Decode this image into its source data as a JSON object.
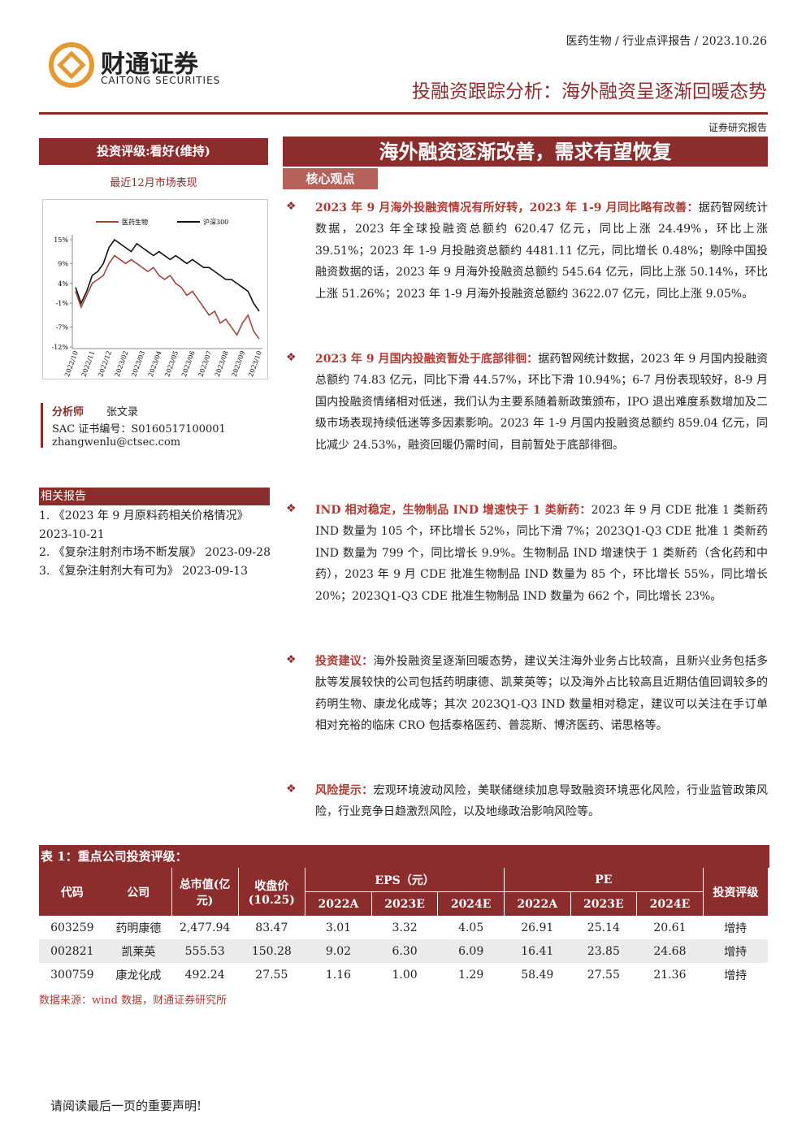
{
  "header": {
    "breadcrumb": "医药生物 / 行业点评报告 / 2023.10.26",
    "company_cn": "财通证券",
    "company_en": "CAITONG SECURITIES",
    "title": "投融资跟踪分析：海外融资呈逐渐回暖态势",
    "label": "证券研究报告"
  },
  "left": {
    "rating": "投资评级:看好(维持)",
    "market_title": "最近12月市场表现",
    "analyst": {
      "role": "分析师",
      "name": "张文录",
      "sac": "SAC 证书编号：S0160517100001",
      "email": "zhangwenlu@ctsec.com"
    },
    "related": {
      "title": "相关报告",
      "items": [
        "1. 《2023 年 9 月原料药相关价格情况》 2023-10-21",
        "2. 《复杂注射剂市场不断发展》 2023-09-28",
        "3. 《复杂注射剂大有可为》 2023-09-13"
      ]
    }
  },
  "chart_data": {
    "type": "line",
    "categories": [
      "2022/10",
      null,
      null,
      "2022/11",
      null,
      null,
      "2022/12",
      null,
      null,
      "2023/02",
      null,
      null,
      "2023/03",
      null,
      null,
      "2023/04",
      null,
      null,
      "2023/05",
      null,
      null,
      "2023/06",
      null,
      null,
      "2023/07",
      null,
      null,
      "2023/08",
      null,
      null,
      "2023/09",
      null,
      null,
      "2023/10"
    ],
    "series": [
      {
        "name": "医药生物",
        "color": "#a0463e",
        "values": [
          2,
          -2,
          1,
          4,
          5,
          6,
          9,
          11,
          10,
          9,
          10,
          9,
          8,
          7,
          8,
          6,
          5,
          6,
          4,
          3,
          1,
          2,
          0,
          -2,
          -4,
          -3,
          -6,
          -5,
          -7,
          -9,
          -6,
          -4,
          -8,
          -10
        ]
      },
      {
        "name": "沪深300",
        "color": "#111111",
        "values": [
          3,
          -1,
          2,
          6,
          7,
          9,
          13,
          15,
          14,
          13,
          12,
          14,
          13,
          12,
          11,
          12,
          11,
          10,
          11,
          10,
          9,
          10,
          9,
          8,
          8,
          7,
          6,
          5,
          5,
          4,
          3,
          2,
          -1,
          -3
        ]
      }
    ],
    "ylim": [
      -12,
      15
    ],
    "yticks": [
      {
        "value": 15,
        "label": "15%"
      },
      {
        "value": 9,
        "label": "9%"
      },
      {
        "value": 4,
        "label": "4%"
      },
      {
        "value": -1,
        "label": "-1%"
      },
      {
        "value": -7,
        "label": "-7%"
      },
      {
        "value": -12,
        "label": "-12%"
      }
    ]
  },
  "main": {
    "headline": "海外融资逐渐改善，需求有望恢复",
    "section": "核心观点",
    "paragraphs": [
      {
        "heading": "2023 年 9 月海外投融资情况有所好转，2023 年 1-9 月同比略有改善：",
        "body": "据药智网统计数据，2023 年全球投融资总额约 620.47 亿元，同比上涨 24.49%，环比上涨 39.51%；2023 年 1-9 月投融资总额约 4481.11 亿元，同比增长 0.48%；剔除中国投融资数据的话，2023 年 9 月海外投融资总额约 545.64 亿元，同比上涨 50.14%，环比上涨 51.26%；2023 年 1-9 月海外投融资总额约 3622.07 亿元，同比上涨 9.05%。"
      },
      {
        "heading": "2023 年 9 月国内投融资暂处于底部徘徊：",
        "body": "据药智网统计数据，2023 年 9 月国内投融资总额约 74.83 亿元，同比下滑 44.57%，环比下滑 10.94%；6-7 月份表现较好，8-9 月国内投融资情绪相对低迷，我们认为主要系随着新政策颁布，IPO 退出难度系数增加及二级市场表现持续低迷等多因素影响。2023 年 1-9 月国内投融资总额约 859.04 亿元，同比减少 24.53%，融资回暖仍需时间，目前暂处于底部徘徊。"
      },
      {
        "heading": "IND 相对稳定，生物制品 IND 增速快于 1 类新药：",
        "body": "2023 年 9 月 CDE 批准 1 类新药 IND 数量为 105 个，环比增长 52%，同比下滑 7%；2023Q1-Q3 CDE 批准 1 类新药 IND 数量为 799 个，同比增长 9.9%。生物制品 IND 增速快于 1 类新药（含化药和中药），2023 年 9 月 CDE 批准生物制品 IND 数量为 85 个，环比增长 55%，同比增长 20%；2023Q1-Q3 CDE 批准生物制品 IND 数量为 662 个，同比增长 23%。"
      },
      {
        "heading": "投资建议：",
        "body": "海外投融资呈逐渐回暖态势，建议关注海外业务占比较高，且新兴业务包括多肽等发展较快的公司包括药明康德、凯莱英等；以及海外占比较高且近期估值回调较多的药明生物、康龙化成等；其次 2023Q1-Q3 IND 数量相对稳定，建议可以关注在手订单相对充裕的临床 CRO 包括泰格医药、普蕊斯、博济医药、诺思格等。"
      },
      {
        "heading": "风险提示：",
        "body": "宏观环境波动风险，美联储继续加息导致融资环境恶化风险，行业监管政策风险，行业竞争日趋激烈风险，以及地缘政治影响风险等。"
      }
    ]
  },
  "table": {
    "caption": "表 1：重点公司投资评级：",
    "head": {
      "code": "代码",
      "company": "公司",
      "cap": "总市值(亿元)",
      "close": "收盘价(10.25)",
      "eps": "EPS（元）",
      "pe": "PE",
      "rating": "投资评级",
      "years": [
        "2022A",
        "2023E",
        "2024E",
        "2022A",
        "2023E",
        "2024E"
      ]
    },
    "rows": [
      [
        "603259",
        "药明康德",
        "2,477.94",
        "83.47",
        "3.01",
        "3.32",
        "4.05",
        "26.91",
        "25.14",
        "20.61",
        "增持"
      ],
      [
        "002821",
        "凯莱英",
        "555.53",
        "150.28",
        "9.02",
        "6.30",
        "6.09",
        "16.41",
        "23.85",
        "24.68",
        "增持"
      ],
      [
        "300759",
        "康龙化成",
        "492.24",
        "27.55",
        "1.16",
        "1.00",
        "1.29",
        "58.49",
        "27.55",
        "21.36",
        "增持"
      ]
    ],
    "source": "数据来源：wind 数据，财通证券研究所"
  },
  "footer": "请阅读最后一页的重要声明!"
}
